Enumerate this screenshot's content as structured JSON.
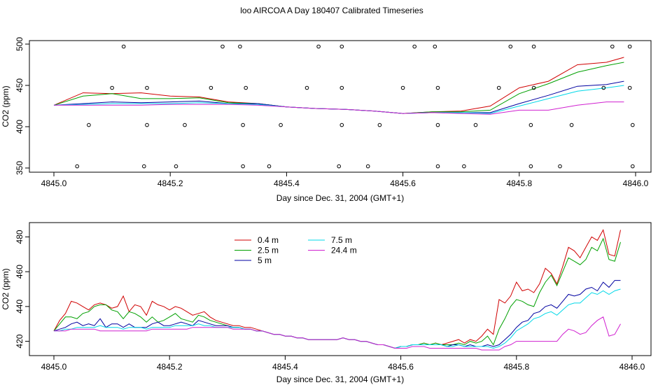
{
  "title": "loo AIRCOA A  Day 180407  Calibrated Timeseries",
  "chart_data": [
    {
      "type": "line",
      "xlabel": "Day since Dec. 31, 2004 (GMT+1)",
      "ylabel": "CO2 (ppm)",
      "xlim": [
        4845.0,
        4846.0
      ],
      "ylim": [
        350,
        500
      ],
      "xticks": [
        "4845.0",
        "4845.2",
        "4845.4",
        "4845.6",
        "4845.8",
        "4846.0"
      ],
      "yticks": [
        "350",
        "400",
        "450",
        "500"
      ],
      "x": [
        4845.0,
        4845.05,
        4845.1,
        4845.15,
        4845.2,
        4845.25,
        4845.3,
        4845.35,
        4845.4,
        4845.45,
        4845.5,
        4845.55,
        4845.6,
        4845.65,
        4845.7,
        4845.75,
        4845.8,
        4845.85,
        4845.9,
        4845.95,
        4845.98
      ],
      "series": [
        {
          "name": "0.4 m",
          "color": "#d00000",
          "values": [
            426,
            441,
            440,
            441,
            437,
            436,
            430,
            428,
            424,
            422,
            421,
            419,
            416,
            418,
            419,
            425,
            447,
            455,
            475,
            478,
            484
          ]
        },
        {
          "name": "2.5 m",
          "color": "#00a000",
          "values": [
            426,
            437,
            440,
            434,
            434,
            435,
            429,
            428,
            424,
            422,
            421,
            419,
            416,
            418,
            418,
            420,
            440,
            452,
            466,
            474,
            478
          ]
        },
        {
          "name": "5 m",
          "color": "#0000a0",
          "values": [
            426,
            428,
            430,
            429,
            430,
            431,
            428,
            428,
            424,
            422,
            421,
            419,
            416,
            417,
            417,
            417,
            428,
            438,
            449,
            451,
            455
          ]
        },
        {
          "name": "7.5 m",
          "color": "#00d8e8",
          "values": [
            426,
            427,
            428,
            428,
            428,
            429,
            428,
            427,
            424,
            422,
            421,
            419,
            416,
            417,
            417,
            416,
            425,
            434,
            443,
            447,
            450
          ]
        },
        {
          "name": "24.4 m",
          "color": "#d020d0",
          "values": [
            426,
            426,
            426,
            426,
            427,
            427,
            427,
            426,
            424,
            422,
            421,
            419,
            416,
            417,
            416,
            415,
            420,
            420,
            426,
            430,
            430
          ]
        }
      ],
      "points": {
        "x": [
          4845.04,
          4845.06,
          4845.1,
          4845.12,
          4845.155,
          4845.16,
          4845.16,
          4845.21,
          4845.225,
          4845.27,
          4845.29,
          4845.32,
          4845.325,
          4845.325,
          4845.33,
          4845.37,
          4845.39,
          4845.435,
          4845.455,
          4845.49,
          4845.495,
          4845.495,
          4845.495,
          4845.54,
          4845.56,
          4845.6,
          4845.62,
          4845.655,
          4845.66,
          4845.66,
          4845.66,
          4845.705,
          4845.725,
          4845.765,
          4845.785,
          4845.82,
          4845.82,
          4845.825,
          4845.825,
          4845.87,
          4845.89,
          4845.945,
          4845.96,
          4845.99,
          4845.99,
          4845.995,
          4845.995
        ],
        "values": [
          352,
          402,
          447,
          497,
          352,
          402,
          447,
          352,
          402,
          447,
          497,
          497,
          352,
          402,
          447,
          352,
          402,
          447,
          497,
          352,
          402,
          447,
          497,
          352,
          402,
          447,
          497,
          497,
          352,
          402,
          447,
          352,
          402,
          447,
          497,
          352,
          402,
          447,
          497,
          352,
          402,
          447,
          497,
          497,
          447,
          402,
          352
        ]
      }
    },
    {
      "type": "line",
      "xlabel": "Day since Dec. 31, 2004 (GMT+1)",
      "ylabel": "CO2 (ppm)",
      "xlim": [
        4845.0,
        4846.0
      ],
      "ylim": [
        415,
        485
      ],
      "xticks": [
        "4845.0",
        "4845.2",
        "4845.4",
        "4845.6",
        "4845.8",
        "4846.0"
      ],
      "yticks": [
        "420",
        "440",
        "460",
        "480"
      ],
      "legend": "top-left",
      "x": [
        4845.0,
        4845.01,
        4845.02,
        4845.03,
        4845.04,
        4845.05,
        4845.06,
        4845.07,
        4845.08,
        4845.09,
        4845.1,
        4845.11,
        4845.12,
        4845.13,
        4845.14,
        4845.15,
        4845.16,
        4845.17,
        4845.18,
        4845.19,
        4845.2,
        4845.21,
        4845.22,
        4845.23,
        4845.24,
        4845.25,
        4845.26,
        4845.27,
        4845.28,
        4845.29,
        4845.3,
        4845.31,
        4845.32,
        4845.33,
        4845.34,
        4845.35,
        4845.36,
        4845.37,
        4845.38,
        4845.39,
        4845.4,
        4845.41,
        4845.42,
        4845.43,
        4845.44,
        4845.45,
        4845.46,
        4845.47,
        4845.48,
        4845.49,
        4845.5,
        4845.51,
        4845.52,
        4845.53,
        4845.54,
        4845.55,
        4845.56,
        4845.57,
        4845.58,
        4845.59,
        4845.6,
        4845.61,
        4845.62,
        4845.63,
        4845.64,
        4845.65,
        4845.66,
        4845.67,
        4845.68,
        4845.69,
        4845.7,
        4845.71,
        4845.72,
        4845.73,
        4845.74,
        4845.75,
        4845.76,
        4845.77,
        4845.78,
        4845.79,
        4845.8,
        4845.81,
        4845.82,
        4845.83,
        4845.84,
        4845.85,
        4845.86,
        4845.87,
        4845.88,
        4845.89,
        4845.9,
        4845.91,
        4845.92,
        4845.93,
        4845.94,
        4845.95,
        4845.96,
        4845.97,
        4845.98
      ],
      "series": [
        {
          "name": "0.4 m",
          "color": "#d00000",
          "values": [
            426,
            432,
            436,
            443,
            442,
            440,
            438,
            441,
            442,
            441,
            439,
            440,
            446,
            437,
            441,
            440,
            435,
            443,
            441,
            440,
            438,
            440,
            439,
            437,
            435,
            436,
            437,
            434,
            432,
            431,
            430,
            429,
            429,
            428,
            428,
            427,
            426,
            425,
            424,
            424,
            423,
            423,
            422,
            422,
            421,
            421,
            421,
            421,
            421,
            421,
            422,
            421,
            421,
            420,
            420,
            419,
            418,
            418,
            417,
            416,
            417,
            417,
            418,
            418,
            419,
            418,
            419,
            418,
            419,
            420,
            421,
            419,
            421,
            420,
            423,
            427,
            424,
            444,
            442,
            446,
            454,
            449,
            450,
            448,
            453,
            462,
            459,
            453,
            463,
            474,
            472,
            468,
            474,
            480,
            478,
            484,
            470,
            469,
            484
          ]
        },
        {
          "name": "2.5 m",
          "color": "#00a000",
          "values": [
            426,
            430,
            434,
            434,
            433,
            436,
            437,
            440,
            441,
            441,
            438,
            437,
            433,
            437,
            436,
            434,
            431,
            434,
            431,
            432,
            434,
            436,
            433,
            432,
            431,
            435,
            434,
            432,
            431,
            430,
            429,
            428,
            428,
            427,
            427,
            426,
            426,
            425,
            424,
            424,
            423,
            423,
            422,
            422,
            421,
            421,
            421,
            421,
            421,
            421,
            422,
            421,
            421,
            420,
            420,
            419,
            418,
            418,
            417,
            416,
            417,
            417,
            418,
            418,
            419,
            418,
            419,
            418,
            418,
            418,
            419,
            418,
            420,
            419,
            420,
            423,
            418,
            427,
            433,
            440,
            444,
            443,
            441,
            440,
            448,
            454,
            458,
            452,
            460,
            468,
            466,
            464,
            467,
            474,
            472,
            479,
            467,
            466,
            477
          ]
        },
        {
          "name": "5 m",
          "color": "#0000a0",
          "values": [
            426,
            427,
            428,
            430,
            431,
            429,
            430,
            429,
            433,
            428,
            430,
            430,
            428,
            430,
            428,
            428,
            428,
            430,
            431,
            429,
            429,
            430,
            431,
            430,
            429,
            432,
            431,
            430,
            429,
            429,
            429,
            428,
            428,
            427,
            427,
            426,
            426,
            425,
            424,
            424,
            423,
            423,
            422,
            422,
            421,
            421,
            421,
            421,
            421,
            421,
            422,
            421,
            421,
            420,
            420,
            419,
            418,
            418,
            417,
            416,
            417,
            417,
            418,
            418,
            418,
            418,
            418,
            418,
            417,
            418,
            418,
            417,
            418,
            417,
            417,
            418,
            417,
            418,
            421,
            424,
            428,
            431,
            432,
            436,
            437,
            440,
            441,
            439,
            443,
            447,
            446,
            447,
            450,
            451,
            449,
            454,
            451,
            455,
            455
          ]
        },
        {
          "name": "7.5 m",
          "color": "#00d8e8",
          "values": [
            426,
            426,
            427,
            427,
            428,
            428,
            428,
            428,
            429,
            428,
            428,
            428,
            427,
            428,
            428,
            428,
            427,
            428,
            428,
            428,
            428,
            429,
            429,
            429,
            429,
            430,
            429,
            429,
            428,
            428,
            428,
            428,
            428,
            427,
            427,
            426,
            426,
            425,
            424,
            424,
            423,
            423,
            422,
            422,
            421,
            421,
            421,
            421,
            421,
            421,
            422,
            421,
            421,
            420,
            420,
            419,
            418,
            418,
            417,
            416,
            417,
            417,
            418,
            418,
            418,
            418,
            418,
            418,
            417,
            417,
            418,
            417,
            417,
            417,
            417,
            417,
            416,
            417,
            419,
            422,
            426,
            428,
            430,
            433,
            434,
            436,
            437,
            435,
            438,
            441,
            442,
            442,
            445,
            448,
            447,
            449,
            447,
            449,
            450
          ]
        },
        {
          "name": "24.4 m",
          "color": "#d020d0",
          "values": [
            426,
            426,
            426,
            427,
            427,
            427,
            427,
            427,
            426,
            426,
            426,
            426,
            426,
            426,
            426,
            426,
            426,
            427,
            427,
            427,
            427,
            427,
            427,
            427,
            428,
            428,
            428,
            428,
            428,
            428,
            428,
            427,
            427,
            427,
            427,
            426,
            426,
            425,
            424,
            424,
            423,
            423,
            422,
            422,
            421,
            421,
            421,
            421,
            421,
            421,
            422,
            421,
            421,
            420,
            420,
            419,
            418,
            418,
            417,
            416,
            416,
            416,
            417,
            417,
            417,
            416,
            416,
            416,
            416,
            416,
            416,
            416,
            416,
            416,
            415,
            415,
            415,
            415,
            417,
            418,
            420,
            420,
            420,
            420,
            420,
            420,
            420,
            420,
            424,
            427,
            426,
            424,
            425,
            429,
            432,
            434,
            423,
            424,
            430
          ]
        }
      ]
    }
  ]
}
